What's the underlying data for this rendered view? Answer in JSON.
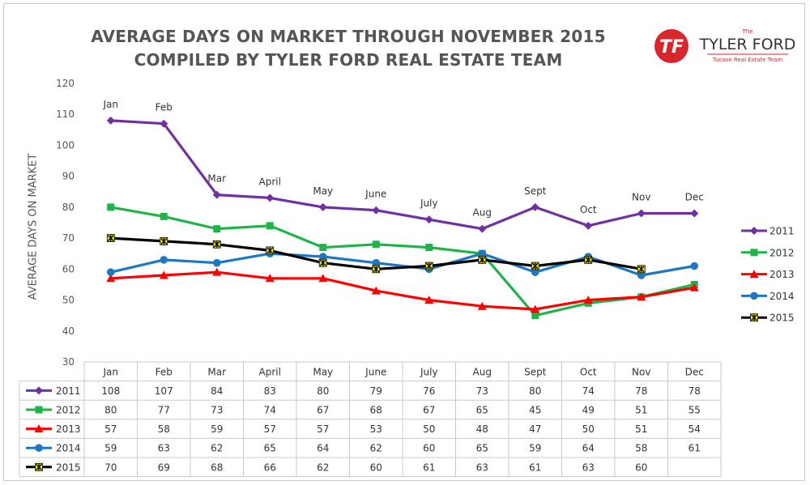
{
  "title_line1": "AVERAGE DAYS ON MARKET THROUGH NOVEMBER 2015",
  "title_line2": "COMPILED BY TYLER FORD REAL ESTATE TEAM",
  "logo": {
    "top_text": "The",
    "name": "TYLER FORD",
    "tagline": "Tucson Real Estate Team",
    "mark": "TF",
    "colors": {
      "red": "#d7262c",
      "dark": "#333333"
    }
  },
  "chart_data": {
    "type": "line",
    "title": "AVERAGE DAYS ON MARKET THROUGH NOVEMBER 2015",
    "subtitle": "COMPILED BY TYLER FORD REAL ESTATE TEAM",
    "ylabel": "AVERAGE DAYS ON MARKET",
    "xlabel": "",
    "ylim": [
      30,
      120
    ],
    "yticks": [
      30,
      40,
      50,
      60,
      70,
      80,
      90,
      100,
      110,
      120
    ],
    "categories": [
      "Jan",
      "Feb",
      "Mar",
      "April",
      "May",
      "June",
      "July",
      "Aug",
      "Sept",
      "Oct",
      "Nov",
      "Dec"
    ],
    "legend_position": "right",
    "grid": false,
    "data_table": true,
    "series": [
      {
        "name": "2011",
        "color": "#7030a0",
        "marker": "diamond",
        "values": [
          108,
          107,
          84,
          83,
          80,
          79,
          76,
          73,
          80,
          74,
          78,
          78
        ]
      },
      {
        "name": "2012",
        "color": "#1fb34a",
        "marker": "square",
        "values": [
          80,
          77,
          73,
          74,
          67,
          68,
          67,
          65,
          45,
          49,
          51,
          55
        ]
      },
      {
        "name": "2013",
        "color": "#ff0000",
        "marker": "triangle",
        "values": [
          57,
          58,
          59,
          57,
          57,
          53,
          50,
          48,
          47,
          50,
          51,
          54
        ]
      },
      {
        "name": "2014",
        "color": "#1f77c0",
        "marker": "circle",
        "values": [
          59,
          63,
          62,
          65,
          64,
          62,
          60,
          65,
          59,
          64,
          58,
          61
        ]
      },
      {
        "name": "2015",
        "color": "#000000",
        "marker": "star",
        "values": [
          70,
          69,
          68,
          66,
          62,
          60,
          61,
          63,
          61,
          63,
          60,
          null
        ]
      }
    ]
  }
}
